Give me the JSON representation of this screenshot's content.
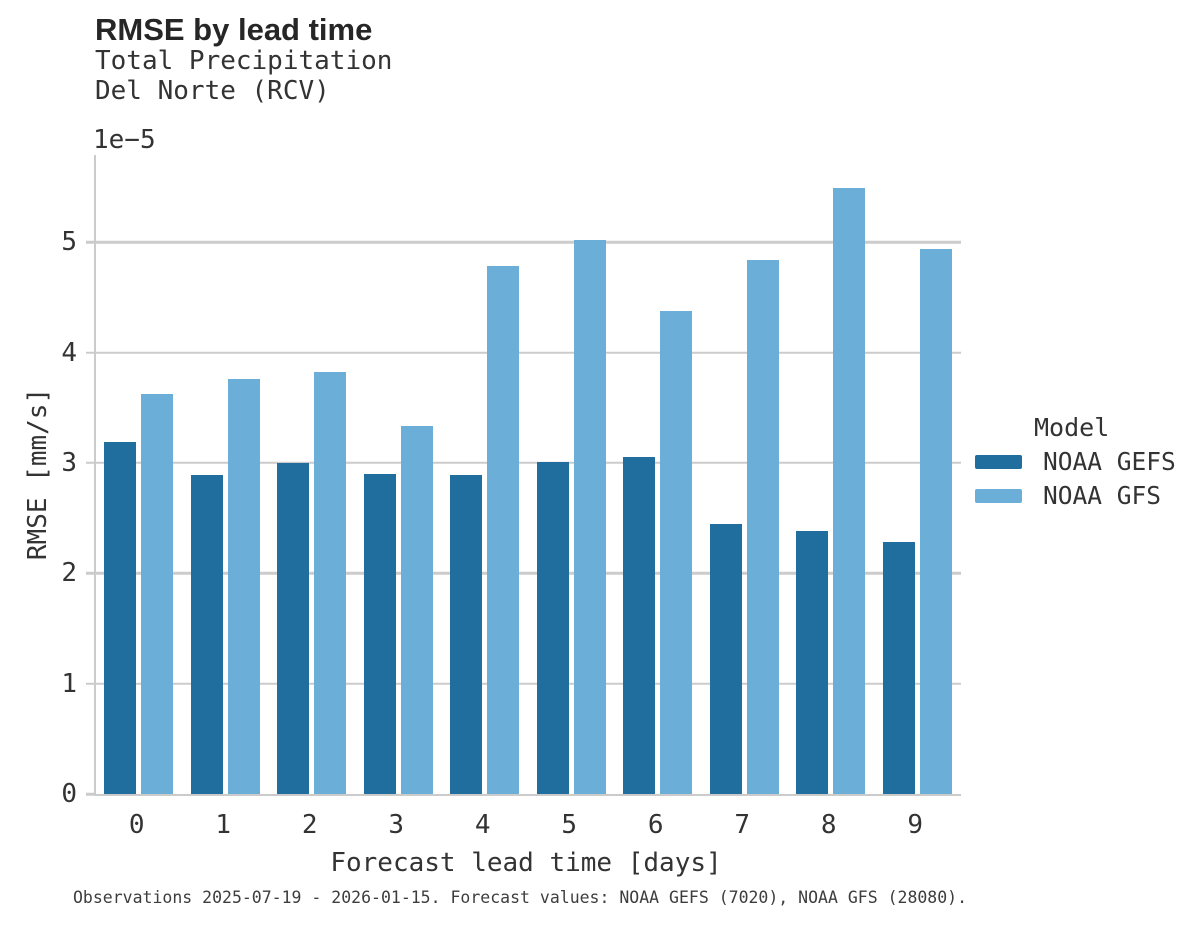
{
  "header": {
    "title": "RMSE by lead time",
    "subtitle_line1": "Total Precipitation",
    "subtitle_line2": "Del Norte (RCV)"
  },
  "chart_data": {
    "type": "bar",
    "title": "RMSE by lead time",
    "subtitle": [
      "Total Precipitation",
      "Del Norte (RCV)"
    ],
    "categories": [
      "0",
      "1",
      "2",
      "3",
      "4",
      "5",
      "6",
      "7",
      "8",
      "9"
    ],
    "series": [
      {
        "name": "NOAA GEFS",
        "color": "#1f6e9e",
        "values": [
          3.19,
          2.89,
          3.0,
          2.9,
          2.89,
          3.01,
          3.05,
          2.45,
          2.38,
          2.28
        ]
      },
      {
        "name": "NOAA GFS",
        "color": "#6bafd8",
        "values": [
          3.62,
          3.76,
          3.82,
          3.33,
          4.78,
          5.02,
          4.38,
          4.84,
          5.49,
          4.94
        ]
      }
    ],
    "value_scale": "1e-5",
    "y_offset_text": "1e−5",
    "xlabel": "Forecast lead time [days]",
    "ylabel": "RMSE [mm/s]",
    "yticks": [
      0,
      1,
      2,
      3,
      4,
      5
    ],
    "ylim": [
      0,
      5.79
    ],
    "grid": "horizontal",
    "gridline_color": "#cccccc",
    "legend": {
      "title": "Model",
      "position": "right"
    }
  },
  "caption": "Observations 2025-07-19 - 2026-01-15. Forecast values: NOAA GEFS (7020), NOAA GFS (28080)."
}
